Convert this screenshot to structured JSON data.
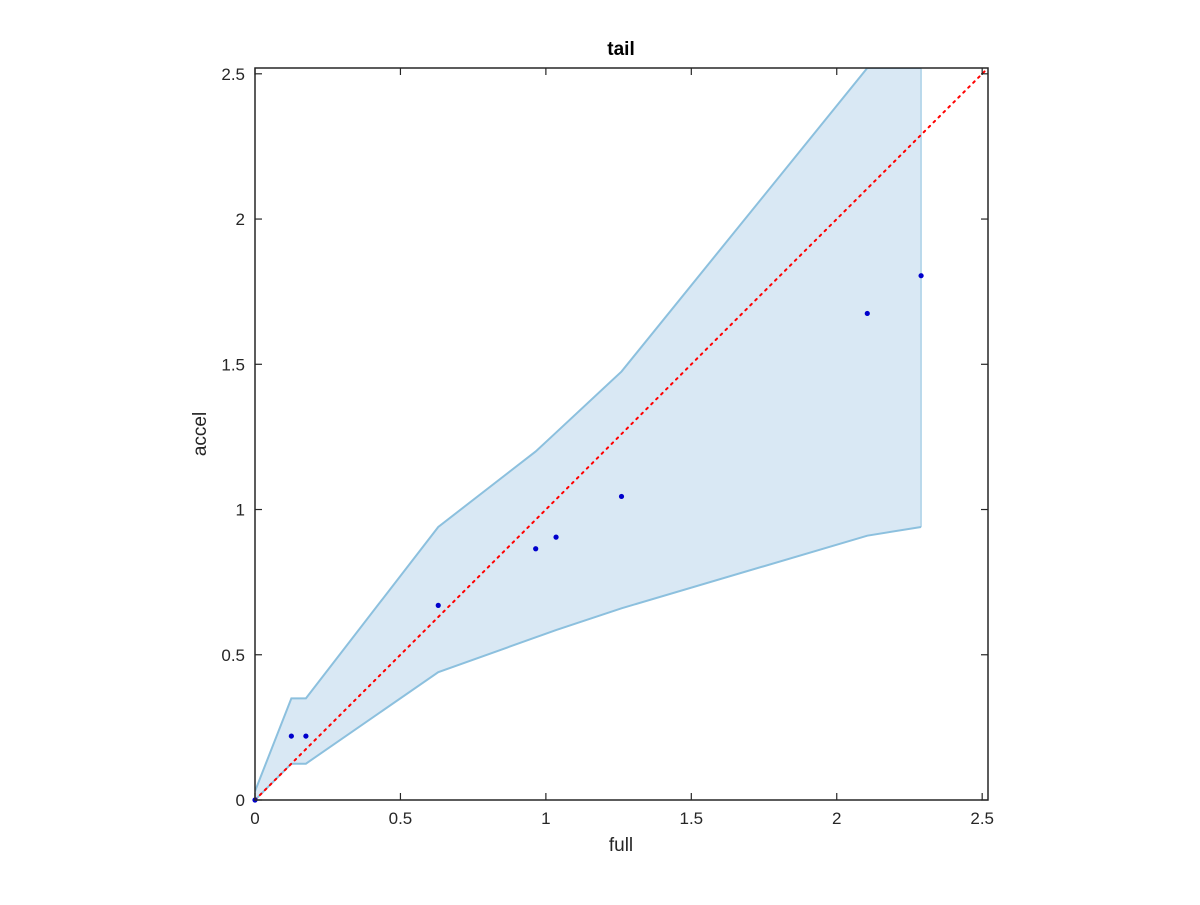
{
  "chart_data": {
    "type": "scatter",
    "title": "tail",
    "xlabel": "full",
    "ylabel": "accel",
    "xlim": [
      0,
      2.52
    ],
    "ylim": [
      0,
      2.52
    ],
    "xticks": [
      0,
      0.5,
      1,
      1.5,
      2,
      2.5
    ],
    "yticks": [
      0,
      0.5,
      1,
      1.5,
      2,
      2.5
    ],
    "xtick_labels": [
      "0",
      "0.5",
      "1",
      "1.5",
      "2",
      "2.5"
    ],
    "ytick_labels": [
      "0",
      "0.5",
      "1",
      "1.5",
      "2",
      "2.5"
    ],
    "grid": false,
    "points": {
      "x": [
        0,
        0.125,
        0.175,
        0.63,
        0.965,
        1.035,
        1.26,
        2.105,
        2.29
      ],
      "y": [
        0,
        0.22,
        0.22,
        0.67,
        0.865,
        0.905,
        1.045,
        1.675,
        1.805
      ],
      "color": "#0000CC"
    },
    "band": {
      "x": [
        0,
        0.125,
        0.175,
        0.63,
        0.965,
        1.035,
        1.26,
        2.105,
        2.29
      ],
      "upper": [
        0.03,
        0.35,
        0.35,
        0.94,
        1.2,
        1.265,
        1.475,
        2.52,
        2.52
      ],
      "lower": [
        0.0,
        0.125,
        0.125,
        0.44,
        0.56,
        0.585,
        0.66,
        0.91,
        0.94
      ],
      "fill_color": "#D9E8F4",
      "edge_color": "#8CC0DE"
    },
    "reference_line": {
      "type": "identity",
      "color": "#FF0000",
      "style": "dotted"
    }
  }
}
